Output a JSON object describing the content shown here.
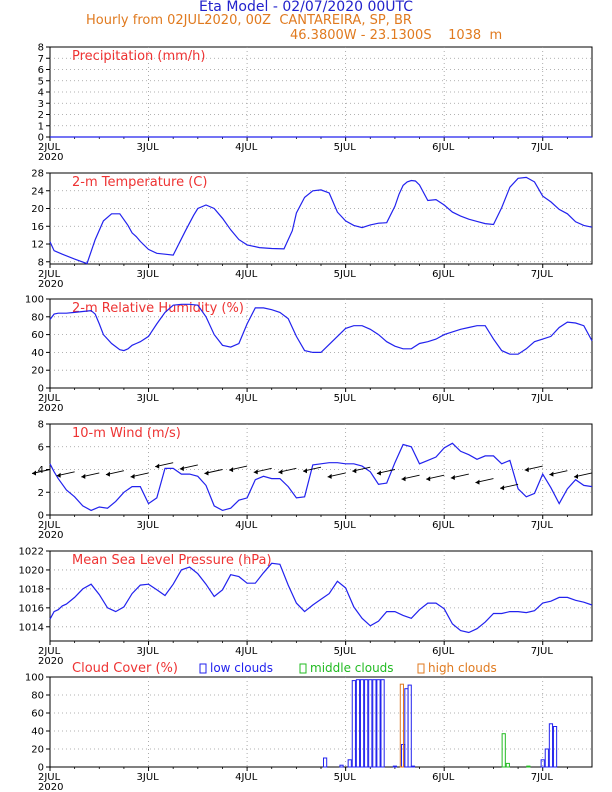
{
  "header": {
    "title": "Eta Model - 02/07/2020 00UTC",
    "subtitle": "Hourly from 02JUL2020, 00Z  CANTAREIRA, SP, BR",
    "coords": "46.3800W - 23.1300S    1038  m"
  },
  "colors": {
    "series": "#2222ee",
    "title": "#ee3333",
    "orange": "#e07a1f",
    "green": "#22bb22",
    "axis": "#000000"
  },
  "xaxis": {
    "ticks": [
      "2JUL",
      "3JUL",
      "4JUL",
      "5JUL",
      "6JUL",
      "7JUL"
    ],
    "year": "2020",
    "range_hours": [
      0,
      132
    ]
  },
  "chart_data": [
    {
      "type": "line",
      "title": "Precipitation (mm/h)",
      "ylim": [
        0,
        8
      ],
      "yticks": [
        "0",
        "1",
        "2",
        "3",
        "4",
        "5",
        "6",
        "7",
        "8"
      ],
      "series": [
        {
          "name": "precipitation",
          "x": [
            0,
            132
          ],
          "y": [
            0,
            0
          ]
        }
      ]
    },
    {
      "type": "line",
      "title": "2-m Temperature (C)",
      "ylim": [
        7.5,
        28
      ],
      "yticks": [
        "8",
        "12",
        "16",
        "20",
        "24",
        "28"
      ],
      "ytick_values": [
        8,
        12,
        16,
        20,
        24,
        28
      ],
      "series": [
        {
          "name": "temperature",
          "x": [
            0,
            1,
            3,
            6,
            9,
            11,
            13,
            15,
            17,
            19,
            20,
            21,
            22,
            24,
            26,
            28,
            30,
            33,
            35,
            36,
            38,
            40,
            42,
            44,
            46,
            48,
            51,
            54,
            57,
            59,
            60,
            62,
            64,
            66,
            68,
            70,
            72,
            74,
            76,
            78,
            80,
            82,
            84,
            85,
            86,
            87,
            88,
            89,
            90,
            92,
            94,
            96,
            98,
            100,
            102,
            104,
            106,
            108,
            110,
            112,
            114,
            116,
            118,
            120,
            122,
            124,
            126,
            128,
            130,
            132
          ],
          "y": [
            12.5,
            10.5,
            9.7,
            8.6,
            7.6,
            13,
            17.2,
            18.8,
            18.8,
            16.2,
            14.5,
            13.7,
            12.6,
            10.8,
            9.9,
            9.7,
            9.5,
            15,
            18.5,
            20,
            20.8,
            20,
            17.8,
            15.2,
            13,
            11.8,
            11.2,
            11,
            10.9,
            15,
            19,
            22.5,
            24,
            24.2,
            23.5,
            19.2,
            17.2,
            16.2,
            15.7,
            16.3,
            16.7,
            16.8,
            20.5,
            23.2,
            25.2,
            26,
            26.3,
            26.2,
            25.3,
            21.8,
            22,
            20.8,
            19.2,
            18.3,
            17.6,
            17.1,
            16.6,
            16.4,
            20.2,
            24.8,
            26.8,
            27,
            26,
            22.8,
            21.5,
            19.8,
            18.8,
            17,
            16.2,
            15.8
          ]
        }
      ]
    },
    {
      "type": "line",
      "title": "2-m Relative Humidity (%)",
      "ylim": [
        0,
        100
      ],
      "yticks": [
        "0",
        "20",
        "40",
        "60",
        "80",
        "100"
      ],
      "series": [
        {
          "name": "relative_humidity",
          "x": [
            0,
            1,
            2,
            4,
            6,
            8,
            10,
            11,
            12,
            13,
            15,
            17,
            18,
            19,
            20,
            21,
            22,
            24,
            26,
            28,
            30,
            32,
            34,
            36,
            38,
            40,
            42,
            44,
            46,
            48,
            50,
            52,
            54,
            56,
            58,
            60,
            62,
            64,
            66,
            68,
            70,
            72,
            74,
            76,
            78,
            80,
            82,
            84,
            86,
            88,
            90,
            92,
            94,
            96,
            98,
            100,
            102,
            104,
            106,
            108,
            110,
            112,
            114,
            116,
            118,
            120,
            122,
            124,
            126,
            128,
            130,
            132
          ],
          "y": [
            77,
            83,
            84,
            84,
            85,
            86,
            87,
            83,
            72,
            60,
            50,
            43,
            42,
            44,
            48,
            50,
            52,
            58,
            72,
            85,
            93,
            94,
            94,
            93,
            80,
            60,
            48,
            46,
            50,
            72,
            90,
            90,
            88,
            85,
            78,
            58,
            42,
            40,
            40,
            49,
            58,
            67,
            70,
            70,
            66,
            60,
            52,
            47,
            44,
            44,
            50,
            52,
            55,
            60,
            63,
            66,
            68,
            70,
            70,
            55,
            42,
            38,
            38,
            44,
            52,
            55,
            58,
            68,
            74,
            73,
            70,
            53
          ]
        }
      ]
    },
    {
      "type": "line",
      "title": "10-m Wind (m/s)",
      "ylim": [
        0,
        8
      ],
      "yticks": [
        "0",
        "2",
        "4",
        "6",
        "8"
      ],
      "series": [
        {
          "name": "wind_speed",
          "x": [
            0,
            1,
            2,
            4,
            6,
            8,
            10,
            12,
            14,
            16,
            18,
            20,
            22,
            24,
            26,
            28,
            30,
            32,
            34,
            36,
            38,
            40,
            42,
            44,
            46,
            48,
            50,
            52,
            54,
            56,
            58,
            60,
            62,
            64,
            66,
            68,
            70,
            72,
            74,
            76,
            78,
            80,
            82,
            84,
            86,
            88,
            90,
            92,
            94,
            96,
            98,
            100,
            102,
            104,
            106,
            108,
            110,
            112,
            114,
            116,
            118,
            120,
            122,
            124,
            126,
            128,
            130,
            132
          ],
          "y": [
            4.5,
            3.8,
            3.2,
            2.2,
            1.6,
            0.8,
            0.4,
            0.7,
            0.6,
            1.2,
            2,
            2.5,
            2.5,
            1,
            1.5,
            4.1,
            4.1,
            3.6,
            3.6,
            3.4,
            2.6,
            0.8,
            0.4,
            0.6,
            1.3,
            1.5,
            3.1,
            3.4,
            3.2,
            3.2,
            2.5,
            1.5,
            1.6,
            4.4,
            4.5,
            4.6,
            4.6,
            4.5,
            4.5,
            4.3,
            3.8,
            2.7,
            2.8,
            4.6,
            6.2,
            6,
            4.5,
            4.8,
            5.1,
            5.9,
            6.3,
            5.6,
            5.3,
            4.9,
            5.2,
            5.2,
            4.5,
            4.8,
            2.3,
            1.6,
            1.9,
            3.6,
            2.4,
            1.0,
            2.3,
            3.1,
            2.6,
            2.5
          ]
        },
        {
          "name": "wind_barbs",
          "x": [
            0,
            6,
            12,
            18,
            24,
            30,
            36,
            42,
            48,
            54,
            60,
            66,
            72,
            78,
            84,
            90,
            96,
            102,
            108,
            114,
            120,
            126,
            132
          ],
          "y": [
            4,
            3.8,
            3.7,
            3.9,
            3.7,
            4.6,
            4.4,
            4.0,
            4.3,
            4.1,
            4.1,
            4.2,
            3.7,
            4.2,
            4.0,
            3.5,
            3.5,
            3.6,
            3.2,
            2.7,
            4.3,
            3.9,
            3.7
          ]
        }
      ]
    },
    {
      "type": "line",
      "title": "Mean Sea Level Pressure (hPa)",
      "ylim": [
        1012.5,
        1022
      ],
      "yticks": [
        "1014",
        "1016",
        "1018",
        "1020",
        "1022"
      ],
      "ytick_values": [
        1014,
        1016,
        1018,
        1020,
        1022
      ],
      "series": [
        {
          "name": "mslp",
          "x": [
            0,
            1,
            2,
            3,
            4,
            6,
            8,
            10,
            12,
            14,
            16,
            18,
            20,
            22,
            24,
            26,
            28,
            30,
            32,
            34,
            36,
            38,
            40,
            42,
            44,
            46,
            48,
            50,
            52,
            54,
            56,
            58,
            60,
            62,
            64,
            66,
            68,
            70,
            72,
            74,
            76,
            78,
            80,
            82,
            84,
            86,
            88,
            90,
            92,
            94,
            96,
            98,
            100,
            102,
            104,
            106,
            108,
            110,
            112,
            114,
            116,
            118,
            120,
            122,
            124,
            126,
            128,
            130,
            132
          ],
          "y": [
            1014.8,
            1015.6,
            1015.8,
            1016.2,
            1016.4,
            1017.1,
            1018,
            1018.5,
            1017.4,
            1016,
            1015.6,
            1016.1,
            1017.5,
            1018.4,
            1018.5,
            1017.9,
            1017.3,
            1018.5,
            1020,
            1020.3,
            1019.6,
            1018.5,
            1017.2,
            1017.9,
            1019.5,
            1019.3,
            1018.6,
            1018.6,
            1019.7,
            1020.7,
            1020.6,
            1018.4,
            1016.5,
            1015.6,
            1016.3,
            1016.9,
            1017.5,
            1018.8,
            1018.1,
            1016.1,
            1014.9,
            1014.1,
            1014.6,
            1015.6,
            1015.6,
            1015.2,
            1014.9,
            1015.8,
            1016.5,
            1016.5,
            1015.9,
            1014.3,
            1013.6,
            1013.4,
            1013.8,
            1014.5,
            1015.4,
            1015.4,
            1015.6,
            1015.6,
            1015.5,
            1015.7,
            1016.5,
            1016.7,
            1017.1,
            1017.1,
            1016.8,
            1016.6,
            1016.3
          ]
        }
      ]
    },
    {
      "type": "bar",
      "title": "Cloud Cover (%)",
      "ylim": [
        0,
        100
      ],
      "yticks": [
        "0",
        "20",
        "40",
        "60",
        "80",
        "100"
      ],
      "legend": [
        "low clouds",
        "middle clouds",
        "high clouds"
      ],
      "series": [
        {
          "name": "low clouds",
          "x": [
            67,
            71,
            73,
            74,
            75,
            76,
            77,
            78,
            79,
            80,
            81,
            84,
            86,
            86.8,
            87.6,
            88.4,
            120,
            121,
            122,
            123
          ],
          "y": [
            10,
            2,
            8,
            96,
            97,
            97,
            97,
            97,
            97,
            97,
            97,
            1,
            25,
            87,
            91,
            1,
            8,
            20,
            48,
            45
          ]
        },
        {
          "name": "middle clouds",
          "x": [
            110.5,
            111.5,
            116.5
          ],
          "y": [
            37,
            4,
            1
          ]
        },
        {
          "name": "high clouds",
          "x": [
            85.7
          ],
          "y": [
            92
          ]
        }
      ]
    }
  ]
}
